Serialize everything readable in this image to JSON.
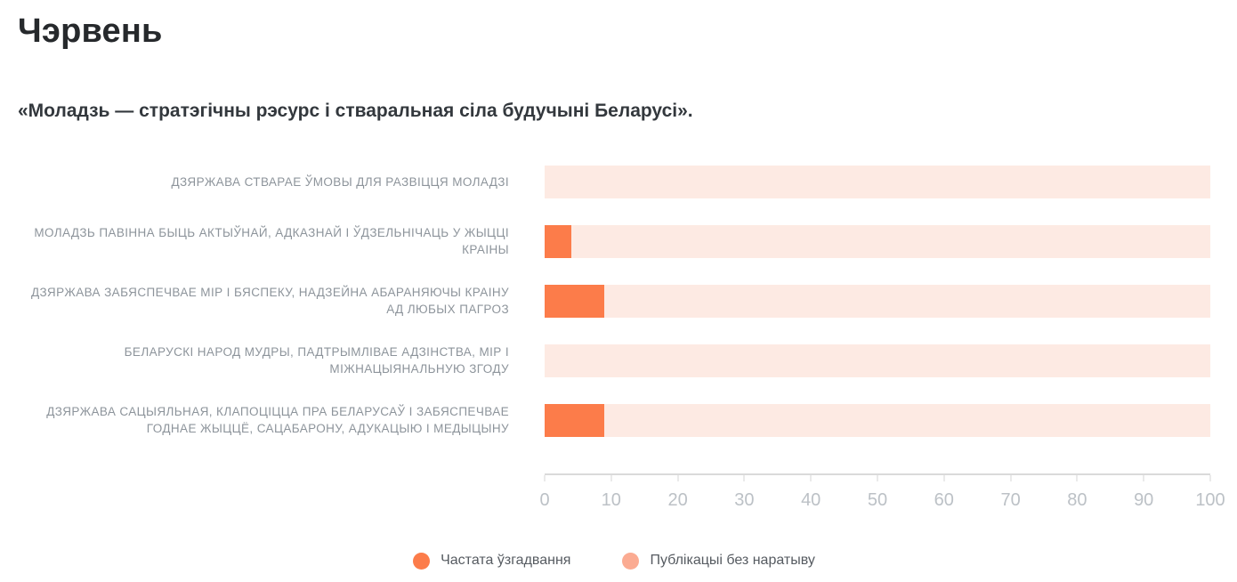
{
  "page": {
    "title": "Чэрвень",
    "subtitle": "«Моладзь — стратэгічны рэсурс і стваральная сіла будучыні Беларусі»."
  },
  "chart_data": {
    "type": "bar",
    "orientation": "horizontal",
    "stacked": true,
    "title": "Чэрвень",
    "subtitle": "«Моладзь — стратэгічны рэсурс і стваральная сіла будучыні Беларусі».",
    "categories": [
      "ДЗЯРЖАВА СТВАРАЕ ЎМОВЫ ДЛЯ РАЗВІЦЦЯ МОЛАДЗІ",
      "МОЛАДЗЬ ПАВІННА БЫЦЬ АКТЫЎНАЙ, АДКАЗНАЙ І ЎДЗЕЛЬНІЧАЦЬ У ЖЫЦЦІ КРАІНЫ",
      "ДЗЯРЖАВА ЗАБЯСПЕЧВАЕ МІР І БЯСПЕКУ, НАДЗЕЙНА АБАРАНЯЮЧЫ КРАІНУ АД ЛЮБЫХ ПАГРОЗ",
      "БЕЛАРУСКІ НАРОД МУДРЫ, ПАДТРЫМЛІВАЕ АДЗІНСТВА, МІР І МІЖНАЦЫЯНАЛЬНУЮ ЗГОДУ",
      "ДЗЯРЖАВА САЦЫЯЛЬНАЯ, КЛАПОЦІЦЦА ПРА БЕЛАРУСАЎ І ЗАБЯСПЕЧВАЕ ГОДНАЕ ЖЫЦЦЁ, САЦАБАРОНУ, АДУКАЦЫЮ І МЕДЫЦЫНУ"
    ],
    "series": [
      {
        "name": "Частата ўзгадвання",
        "values": [
          0,
          4,
          9,
          0,
          9
        ],
        "color": "#fc7c4a",
        "legend_marker_color": "#fc7c4a"
      },
      {
        "name": "Публікацыі без наратыву",
        "values": [
          100,
          96,
          91,
          100,
          91
        ],
        "color": "#fdeae3",
        "legend_marker_color": "#fbab92"
      }
    ],
    "xlim": [
      0,
      100
    ],
    "xticks": [
      0,
      10,
      20,
      30,
      40,
      50,
      60,
      70,
      80,
      90,
      100
    ],
    "grid": false,
    "legend_position": "bottom"
  },
  "colors": {
    "accent_orange": "#fc7c4a",
    "bar_background_pink": "#fdeae3",
    "legend_pink_marker": "#fbab92",
    "category_label_gray": "#8d949b",
    "axis_line_gray": "#dadada",
    "tick_label_gray": "#bcc1c6",
    "title_dark": "#26292c",
    "subtitle_dark": "#33383d",
    "background": "#ffffff"
  }
}
